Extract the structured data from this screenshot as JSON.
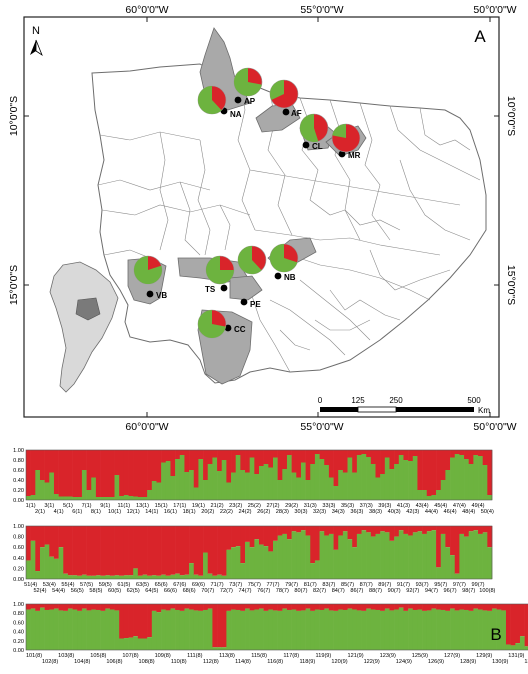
{
  "panel_a": {
    "label": "A",
    "north_label": "N",
    "lon_labels": [
      "60°0'0\"W",
      "55°0'0\"W",
      "50°0'0\"W"
    ],
    "lat_labels": [
      "10°0'0\"S",
      "15°0'0\"S"
    ],
    "scale": {
      "ticks": [
        "0",
        "125",
        "250",
        "500"
      ],
      "unit": "Km"
    },
    "sites": [
      {
        "code": "AP",
        "green_share": 0.72
      },
      {
        "code": "NA",
        "green_share": 0.62
      },
      {
        "code": "AF",
        "green_share": 0.32
      },
      {
        "code": "CL",
        "green_share": 0.55
      },
      {
        "code": "MR",
        "green_share": 0.22
      },
      {
        "code": "VB",
        "green_share": 0.8
      },
      {
        "code": "TS",
        "green_share": 0.75
      },
      {
        "code": "PE",
        "green_share": 0.62
      },
      {
        "code": "NB",
        "green_share": 0.7
      },
      {
        "code": "CC",
        "green_share": 0.72
      }
    ],
    "colors": {
      "cluster1": "#d9242a",
      "cluster2": "#6db33f",
      "site_poly": "#a9a9a9",
      "border": "#6d6d6d"
    }
  },
  "panel_b_label": "B",
  "chart_data": {
    "type": "bar",
    "stacked": true,
    "ylim": [
      0,
      1
    ],
    "y_ticks": [
      "0.00",
      "0.20",
      "0.40",
      "0.60",
      "0.80",
      "1.00"
    ],
    "series_colors": {
      "green": "#6db33f",
      "red": "#d9242a"
    },
    "rows": [
      {
        "labels_top": [
          "1(1)",
          "3(1)",
          "5(1)",
          "7(1)",
          "9(1)",
          "11(1)",
          "13(1)",
          "15(1)",
          "17(1)",
          "19(1)",
          "21(2)",
          "23(2)",
          "25(2)",
          "27(2)",
          "29(2)",
          "31(3)",
          "33(3)",
          "35(3)",
          "37(3)",
          "39(3)",
          "41(3)",
          "43(4)",
          "45(4)",
          "47(4)",
          "49(4)"
        ],
        "labels_bottom": [
          "2(1)",
          "4(1)",
          "6(1)",
          "8(1)",
          "10(1)",
          "12(1)",
          "14(1)",
          "16(1)",
          "18(1)",
          "20(2)",
          "22(2)",
          "24(2)",
          "26(2)",
          "28(3)",
          "30(3)",
          "32(3)",
          "34(3)",
          "36(3)",
          "38(3)",
          "40(3)",
          "42(3)",
          "44(4)",
          "46(4)",
          "48(4)",
          "50(4)"
        ],
        "green": [
          0.08,
          0.1,
          0.6,
          0.4,
          0.35,
          0.55,
          0.12,
          0.07,
          0.07,
          0.07,
          0.06,
          0.06,
          0.6,
          0.2,
          0.45,
          0.06,
          0.06,
          0.06,
          0.06,
          0.5,
          0.08,
          0.1,
          0.08,
          0.07,
          0.06,
          0.06,
          0.2,
          0.38,
          0.35,
          0.75,
          0.78,
          0.48,
          0.82,
          0.9,
          0.56,
          0.6,
          0.25,
          0.82,
          0.4,
          0.72,
          0.85,
          0.58,
          0.8,
          0.35,
          0.55,
          0.9,
          0.6,
          0.55,
          0.85,
          0.52,
          0.68,
          0.72,
          0.65,
          0.85,
          0.4,
          0.62,
          0.9,
          0.55,
          0.45,
          0.75,
          0.4,
          0.72,
          0.92,
          0.82,
          0.7,
          0.45,
          0.28,
          0.6,
          0.55,
          0.85,
          0.55,
          0.9,
          0.92,
          0.86,
          0.72,
          0.45,
          0.52,
          0.85,
          0.62,
          0.72,
          0.9,
          0.8,
          0.78,
          0.88,
          0.2,
          0.2,
          0.08,
          0.1,
          0.2,
          0.4,
          0.6,
          0.85,
          0.92,
          0.9,
          0.82,
          0.72,
          0.9,
          0.88,
          0.7,
          0.1
        ]
      },
      {
        "labels_top": [
          "51(4)",
          "53(4)",
          "55(4)",
          "57(5)",
          "59(5)",
          "61(5)",
          "63(5)",
          "65(6)",
          "67(6)",
          "69(6)",
          "71(7)",
          "73(7)",
          "75(7)",
          "77(7)",
          "79(7)",
          "81(7)",
          "83(7)",
          "85(7)",
          "87(7)",
          "89(7)",
          "91(7)",
          "93(7)",
          "95(7)",
          "97(7)",
          "99(7)"
        ],
        "labels_bottom": [
          "52(4)",
          "54(4)",
          "56(5)",
          "58(5)",
          "60(5)",
          "62(5)",
          "64(5)",
          "66(6)",
          "68(6)",
          "70(7)",
          "72(7)",
          "74(7)",
          "76(7)",
          "78(7)",
          "80(7)",
          "82(7)",
          "84(7)",
          "86(7)",
          "88(7)",
          "90(7)",
          "92(7)",
          "94(7)",
          "96(7)",
          "98(7)",
          "100(8)"
        ],
        "green": [
          0.35,
          0.72,
          0.15,
          0.6,
          0.65,
          0.42,
          0.38,
          0.6,
          0.1,
          0.07,
          0.07,
          0.06,
          0.08,
          0.06,
          0.06,
          0.07,
          0.06,
          0.07,
          0.06,
          0.07,
          0.06,
          0.07,
          0.07,
          0.2,
          0.06,
          0.08,
          0.06,
          0.07,
          0.06,
          0.08,
          0.06,
          0.08,
          0.1,
          0.07,
          0.08,
          0.3,
          0.08,
          0.06,
          0.5,
          0.1,
          0.06,
          0.08,
          0.06,
          0.55,
          0.6,
          0.62,
          0.3,
          0.7,
          0.6,
          0.75,
          0.65,
          0.62,
          0.52,
          0.72,
          0.82,
          0.85,
          0.75,
          0.9,
          0.88,
          0.92,
          0.82,
          0.3,
          0.35,
          0.9,
          0.82,
          0.85,
          0.55,
          0.82,
          0.9,
          0.75,
          0.6,
          0.85,
          0.92,
          0.88,
          0.8,
          0.85,
          0.9,
          0.88,
          0.72,
          0.8,
          0.92,
          0.85,
          0.82,
          0.88,
          0.9,
          0.85,
          0.9,
          0.92,
          0.22,
          0.85,
          0.6,
          0.45,
          0.1,
          0.85,
          0.8,
          0.9,
          0.92,
          0.85,
          0.88,
          0.6
        ]
      },
      {
        "labels_top": [
          "101(8)",
          "103(8)",
          "105(8)",
          "107(8)",
          "109(8)",
          "111(8)",
          "113(8)",
          "115(8)",
          "117(8)",
          "119(9)",
          "121(9)",
          "123(9)",
          "125(9)",
          "127(9)",
          "129(9)",
          "131(9)",
          "133(9)",
          "135(9)",
          "137(10)",
          "139(10)"
        ],
        "labels_bottom": [
          "102(8)",
          "104(8)",
          "106(8)",
          "108(8)",
          "110(8)",
          "112(8)",
          "114(8)",
          "116(8)",
          "118(9)",
          "120(9)",
          "122(9)",
          "124(9)",
          "126(9)",
          "128(9)",
          "130(9)",
          "132(9)",
          "134(9)",
          "136(10)",
          "138(10)",
          "140(10)"
        ],
        "green": [
          0.88,
          0.9,
          0.85,
          0.92,
          0.87,
          0.88,
          0.9,
          0.86,
          0.85,
          0.9,
          0.88,
          0.85,
          0.9,
          0.86,
          0.88,
          0.87,
          0.85,
          0.9,
          0.88,
          0.86,
          0.25,
          0.26,
          0.27,
          0.3,
          0.25,
          0.25,
          0.28,
          0.85,
          0.82,
          0.88,
          0.86,
          0.9,
          0.87,
          0.85,
          0.9,
          0.88,
          0.86,
          0.85,
          0.87,
          0.9,
          0.06,
          0.06,
          0.06,
          0.85,
          0.88,
          0.87,
          0.85,
          0.9,
          0.86,
          0.88,
          0.9,
          0.85,
          0.88,
          0.86,
          0.85,
          0.9,
          0.87,
          0.88,
          0.85,
          0.86,
          0.9,
          0.85,
          0.88,
          0.87,
          0.9,
          0.86,
          0.85,
          0.88,
          0.87,
          0.9,
          0.88,
          0.86,
          0.85,
          0.9,
          0.88,
          0.87,
          0.85,
          0.9,
          0.86,
          0.88,
          0.92,
          0.85,
          0.9,
          0.87,
          0.88,
          0.85,
          0.86,
          0.9,
          0.88,
          0.87,
          0.85,
          0.9,
          0.86,
          0.88,
          0.87,
          0.85,
          0.9,
          0.88,
          0.86,
          0.85,
          0.9,
          0.88,
          0.86,
          0.12,
          0.1,
          0.15,
          0.3,
          0.08,
          0.1,
          0.2,
          0.12,
          0.85,
          0.88,
          0.86,
          0.55,
          0.6,
          0.9,
          0.88,
          0.85,
          0.82,
          0.86,
          0.9,
          0.88,
          0.85,
          0.87,
          0.9,
          0.86,
          0.88,
          0.85,
          0.9,
          0.87,
          0.86,
          0.9,
          0.85,
          0.88,
          0.82,
          0.9,
          0.86
        ]
      }
    ]
  }
}
